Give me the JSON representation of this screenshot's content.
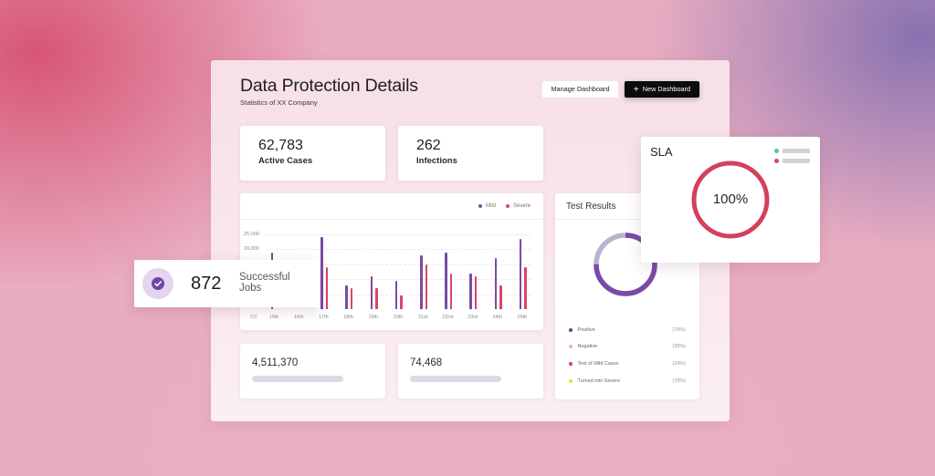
{
  "header": {
    "title": "Data Protection Details",
    "subtitle": "Statistics of XX Company",
    "manage_button": "Manage Dashboard",
    "new_button": "New Dashboard",
    "new_button_icon": "+"
  },
  "stats": [
    {
      "value": "62,783",
      "label": "Active Cases"
    },
    {
      "value": "262",
      "label": "Infections"
    }
  ],
  "mini_stats": [
    {
      "value": "4,511,370"
    },
    {
      "value": "74,468"
    }
  ],
  "success_card": {
    "icon": "check-circle-icon",
    "value": "872",
    "label": "Successful Jobs"
  },
  "test_results": {
    "title": "Test Results",
    "donut": {
      "primary_pct": 75,
      "primary_color": "#7a4aa8",
      "secondary_color": "#b8b6cd"
    },
    "legend": [
      {
        "label": "Positive",
        "value": "(78%)",
        "color": "#6b3fa0"
      },
      {
        "label": "Negative",
        "value": "(38%)",
        "color": "#f3b59c"
      },
      {
        "label": "Test of Mild Cases",
        "value": "(24%)",
        "color": "#d6466a"
      },
      {
        "label": "Turned into Severe",
        "value": "(78%)",
        "color": "#d9e24b"
      }
    ]
  },
  "sla": {
    "title": "SLA",
    "value": "100%",
    "ring_color": "#d4405d",
    "legend_colors": [
      "#5bbfae",
      "#d5455f"
    ]
  },
  "chart_data": {
    "type": "bar",
    "title": "",
    "xlabel": "",
    "ylabel": "",
    "x_origin_label": "CC",
    "categories": [
      "15th",
      "16th",
      "17th",
      "18th",
      "19th",
      "20th",
      "21st",
      "22nd",
      "23rd",
      "24th",
      "25th"
    ],
    "series": [
      {
        "name": "Mild",
        "color": "#7b4aa6",
        "values": [
          19000,
          null,
          24000,
          8000,
          11000,
          9500,
          18000,
          19000,
          12000,
          17000,
          23500
        ]
      },
      {
        "name": "Severe",
        "color": "#d9456a",
        "values": [
          null,
          null,
          14000,
          7000,
          7000,
          4500,
          15000,
          12000,
          11000,
          8000,
          14000
        ]
      }
    ],
    "ytick_labels_visible": [
      "25,000",
      "20,000"
    ],
    "yticks": [
      0,
      5000,
      10000,
      15000,
      20000,
      25000
    ],
    "ylim": [
      0,
      25000
    ],
    "grid": true,
    "legend_position": "top-right"
  },
  "colors": {
    "accent_purple": "#6f46a6",
    "accent_red": "#d4405d",
    "dark_button": "#0c0c0e"
  }
}
